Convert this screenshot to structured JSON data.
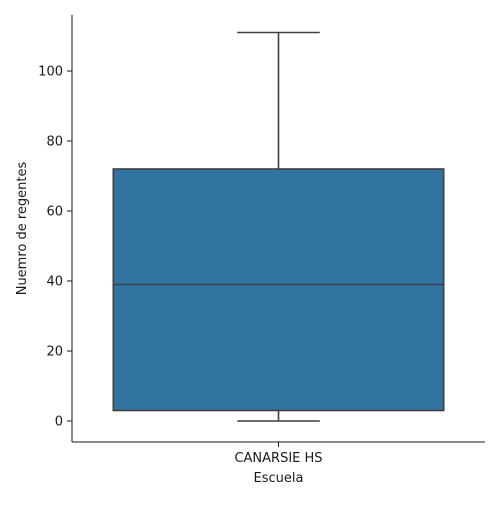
{
  "chart_data": {
    "type": "box",
    "categories": [
      "CANARSIE HS"
    ],
    "xlabel": "Escuela",
    "ylabel": "Nuemro de regentes",
    "ylim": [
      -6,
      116
    ],
    "yticks": [
      0,
      20,
      40,
      60,
      80,
      100
    ],
    "grid": false,
    "boxes": [
      {
        "category": "CANARSIE HS",
        "whisker_low": 0,
        "q1": 3,
        "median": 39,
        "q3": 72,
        "whisker_high": 111,
        "color": "#3274a1"
      }
    ]
  },
  "colors": {
    "box_fill": "#3274a1",
    "box_edge": "#3f3f3f",
    "axis": "#1a1a1a"
  }
}
